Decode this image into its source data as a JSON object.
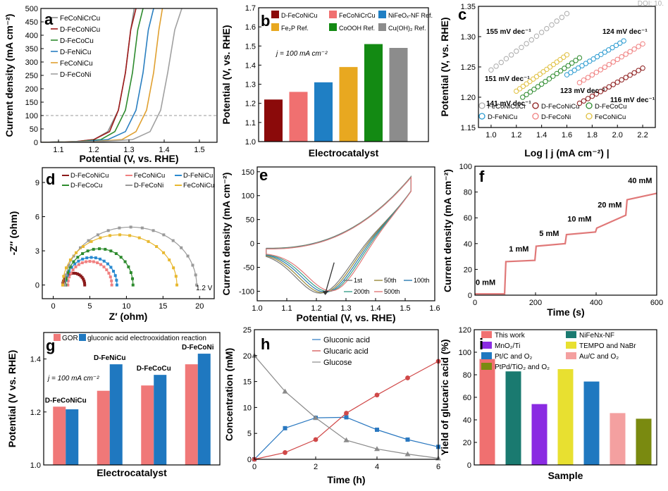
{
  "corner_text": "DOI: 10.",
  "chart_data": [
    {
      "panel": "a",
      "type": "line",
      "xlabel": "Potential (V, vs. RHE)",
      "ylabel": "Current density (mA cm⁻²)",
      "xlim": [
        1.05,
        1.55
      ],
      "ylim": [
        0,
        500
      ],
      "xticks": [
        "1.1",
        "1.2",
        "1.3",
        "1.4",
        "1.5"
      ],
      "yticks": [
        "0",
        "50",
        "100",
        "150",
        "200",
        "250",
        "300",
        "350",
        "400",
        "450",
        "500"
      ],
      "reference_line": 100,
      "series": [
        {
          "name": "FeCoNiCrCu",
          "color": "#8a8a8a",
          "x": [
            1.05,
            1.15,
            1.2,
            1.24,
            1.27,
            1.29,
            1.305,
            1.315
          ],
          "y": [
            0,
            3,
            10,
            40,
            120,
            260,
            420,
            500
          ]
        },
        {
          "name": "D-FeCoNiCu",
          "color": "#9e1b1b",
          "x": [
            1.05,
            1.15,
            1.2,
            1.245,
            1.27,
            1.29,
            1.305,
            1.32
          ],
          "y": [
            0,
            3,
            10,
            40,
            120,
            260,
            420,
            500
          ]
        },
        {
          "name": "D-FeCoCu",
          "color": "#2e8b2e",
          "x": [
            1.05,
            1.16,
            1.22,
            1.26,
            1.29,
            1.31,
            1.325,
            1.34
          ],
          "y": [
            0,
            3,
            10,
            40,
            120,
            260,
            420,
            500
          ]
        },
        {
          "name": "D-FeNiCu",
          "color": "#2a7fc1",
          "x": [
            1.05,
            1.17,
            1.24,
            1.29,
            1.32,
            1.34,
            1.355,
            1.37
          ],
          "y": [
            0,
            3,
            10,
            40,
            120,
            260,
            420,
            500
          ]
        },
        {
          "name": "FeCoNiCu",
          "color": "#e0a030",
          "x": [
            1.05,
            1.2,
            1.28,
            1.32,
            1.35,
            1.37,
            1.385,
            1.395
          ],
          "y": [
            0,
            3,
            10,
            40,
            120,
            260,
            420,
            500
          ]
        },
        {
          "name": "D-FeCoNi",
          "color": "#a0a0a0",
          "x": [
            1.05,
            1.22,
            1.31,
            1.36,
            1.39,
            1.41,
            1.43,
            1.45
          ],
          "y": [
            0,
            3,
            10,
            40,
            120,
            260,
            420,
            500
          ]
        }
      ]
    },
    {
      "panel": "b",
      "type": "bar",
      "xlabel": "Electrocatalyst",
      "ylabel": "Potential (V, vs. RHE)",
      "ylim": [
        1.0,
        1.7
      ],
      "yticks": [
        "1.0",
        "1.1",
        "1.2",
        "1.3",
        "1.4",
        "1.5",
        "1.6",
        "1.7"
      ],
      "annotation": "j = 100 mA cm⁻²",
      "categories": [
        "D-FeCoNiCu",
        "FeCoNiCrCu",
        "NiFeOₓ-NF Ref.",
        "Fe₂P Ref.",
        "CoOOH Ref.",
        "Cu(OH)₂ Ref."
      ],
      "values": [
        1.22,
        1.26,
        1.31,
        1.39,
        1.51,
        1.49
      ],
      "colors": [
        "#8b0a0a",
        "#f07070",
        "#1f7fc4",
        "#e8a820",
        "#138a13",
        "#8c8c8c"
      ]
    },
    {
      "panel": "c",
      "type": "scatter",
      "xlabel": "Log | j (mA cm⁻²) |",
      "ylabel": "Potential (V, vs. RHE)",
      "xlim": [
        0.9,
        2.3
      ],
      "ylim": [
        1.15,
        1.35
      ],
      "xticks": [
        "1.0",
        "1.2",
        "1.4",
        "1.6",
        "1.8",
        "2.0",
        "2.2"
      ],
      "yticks": [
        "1.15",
        "1.20",
        "1.25",
        "1.30",
        "1.35"
      ],
      "series": [
        {
          "name": "FeCoNiCuCr",
          "color": "#aaaaaa",
          "slope_label": "155 mV dec⁻¹",
          "x": [
            1.0,
            1.6
          ],
          "y": [
            1.245,
            1.338
          ]
        },
        {
          "name": "D-FeCoNiCu",
          "color": "#8b1a1a",
          "slope_label": "116 mV dec⁻¹",
          "x": [
            1.7,
            2.2
          ],
          "y": [
            1.19,
            1.248
          ]
        },
        {
          "name": "D-FeCoCu",
          "color": "#2e8b2e",
          "slope_label": "141 mV dec⁻¹",
          "x": [
            1.25,
            1.7
          ],
          "y": [
            1.2,
            1.265
          ]
        },
        {
          "name": "D-FeNiCu",
          "color": "#2a9ad0",
          "slope_label": "124 mV dec⁻¹",
          "x": [
            1.6,
            2.05
          ],
          "y": [
            1.237,
            1.293
          ]
        },
        {
          "name": "D-FeCoNi",
          "color": "#f08080",
          "slope_label": "123 mV dec⁻¹",
          "x": [
            1.7,
            2.2
          ],
          "y": [
            1.224,
            1.288
          ]
        },
        {
          "name": "FeCoNiCu",
          "color": "#e0c040",
          "slope_label": "151 mV dec⁻¹",
          "x": [
            1.2,
            1.6
          ],
          "y": [
            1.21,
            1.27
          ]
        }
      ]
    },
    {
      "panel": "d",
      "type": "scatter",
      "xlabel": "Z′ (ohm)",
      "ylabel": "-Z″ (ohm)",
      "xlim": [
        -1.5,
        22
      ],
      "ylim": [
        -1.2,
        10.3
      ],
      "xticks": [
        "0",
        "5",
        "10",
        "15",
        "20"
      ],
      "yticks": [
        "0",
        "3",
        "6",
        "9"
      ],
      "annotation": "1.2 V",
      "series": [
        {
          "name": "D-FeCoNiCu",
          "color": "#8b1a1a",
          "center": 2.8,
          "radius": 1.5
        },
        {
          "name": "FeCoNiCu",
          "color": "#f08080",
          "center": 5.0,
          "radius": 3.0
        },
        {
          "name": "D-FeNiCu",
          "color": "#2a8ad0",
          "center": 5.2,
          "radius": 3.5
        },
        {
          "name": "D-FeCoCu",
          "color": "#2e8b2e",
          "center": 6.3,
          "radius": 4.6
        },
        {
          "name": "D-FeCoNi",
          "color": "#9a9a9a",
          "center": 10.6,
          "radius": 9.0
        },
        {
          "name": "FeCoNiCu",
          "color": "#e8b830",
          "center": 9.1,
          "radius": 7.8
        }
      ]
    },
    {
      "panel": "e",
      "type": "line",
      "xlabel": "Potential (V, vs. RHE)",
      "ylabel": "Current density (mA cm⁻²)",
      "xlim": [
        1.0,
        1.6
      ],
      "ylim": [
        -120,
        160
      ],
      "xticks": [
        "1.0",
        "1.1",
        "1.2",
        "1.3",
        "1.4",
        "1.5",
        "1.6"
      ],
      "yticks": [
        "-100",
        "-50",
        "0",
        "50",
        "100",
        "150"
      ],
      "series": [
        {
          "name": "1st",
          "color": "#7a7a7a"
        },
        {
          "name": "50th",
          "color": "#9a8a3a"
        },
        {
          "name": "100th",
          "color": "#2a7ab0"
        },
        {
          "name": "200th",
          "color": "#3aa08a"
        },
        {
          "name": "500th",
          "color": "#e07878"
        }
      ]
    },
    {
      "panel": "f",
      "type": "line",
      "xlabel": "Time (s)",
      "ylabel": "Current density (mA cm⁻²)",
      "xlim": [
        0,
        600
      ],
      "ylim": [
        0,
        100
      ],
      "xticks": [
        "0",
        "200",
        "400",
        "600"
      ],
      "yticks": [
        "0",
        "20",
        "40",
        "60",
        "80",
        "100"
      ],
      "series": [
        {
          "name": "trace",
          "color": "#e07878",
          "x": [
            0,
            98,
            102,
            198,
            202,
            298,
            302,
            398,
            402,
            498,
            502,
            600
          ],
          "y": [
            1,
            1,
            26,
            27,
            38,
            40,
            47,
            49,
            52,
            62,
            74,
            79
          ]
        }
      ],
      "step_labels": [
        {
          "text": "0 mM",
          "x": 35,
          "y": 8
        },
        {
          "text": "1 mM",
          "x": 145,
          "y": 34
        },
        {
          "text": "5 mM",
          "x": 245,
          "y": 46
        },
        {
          "text": "10 mM",
          "x": 345,
          "y": 57
        },
        {
          "text": "20 mM",
          "x": 445,
          "y": 68
        },
        {
          "text": "40 mM",
          "x": 545,
          "y": 87
        }
      ]
    },
    {
      "panel": "g",
      "type": "bar",
      "xlabel": "Electrocatalyst",
      "ylabel": "Potential (V vs. RHE)",
      "ylim": [
        1.0,
        1.5
      ],
      "yticks": [
        "1.0",
        "1.2",
        "1.4"
      ],
      "annotation": "j = 100 mA cm⁻²",
      "categories": [
        "D-FeCoNiCu",
        "D-FeNiCu",
        "D-FeCoCu",
        "D-FeCoNi"
      ],
      "series": [
        {
          "name": "GOR",
          "color": "#f07878",
          "values": [
            1.22,
            1.28,
            1.3,
            1.38
          ]
        },
        {
          "name": "gluconic acid electrooxidation reaction",
          "color": "#1f78c0",
          "values": [
            1.21,
            1.38,
            1.34,
            1.42
          ]
        }
      ]
    },
    {
      "panel": "h",
      "type": "line",
      "xlabel": "Time (h)",
      "ylabel": "Concentration (mM)",
      "xlim": [
        0,
        6
      ],
      "ylim": [
        0,
        25
      ],
      "xticks": [
        "0",
        "2",
        "4",
        "6"
      ],
      "yticks": [
        "0",
        "5",
        "10",
        "15",
        "20",
        "25"
      ],
      "x": [
        0,
        1,
        2,
        3,
        4,
        5,
        6
      ],
      "series": [
        {
          "name": "Gluconic acid",
          "color": "#2a78c0",
          "marker": "square",
          "values": [
            0,
            6.0,
            8.0,
            8.1,
            5.7,
            3.8,
            2.4
          ]
        },
        {
          "name": "Glucaric acid",
          "color": "#d04848",
          "marker": "circle",
          "values": [
            0,
            1.3,
            3.8,
            8.9,
            12.4,
            15.7,
            18.9
          ]
        },
        {
          "name": "Glucose",
          "color": "#8a8a8a",
          "marker": "triangle",
          "values": [
            20,
            13.1,
            8.0,
            3.7,
            2.0,
            1.0,
            0.2
          ]
        }
      ]
    },
    {
      "panel": "i",
      "type": "bar",
      "xlabel": "Sample",
      "ylabel": "Yield of glucaric acid (%)",
      "ylim": [
        0,
        120
      ],
      "yticks": [
        "0",
        "20",
        "40",
        "60",
        "80",
        "100",
        "120"
      ],
      "categories": [
        "This work",
        "NiFeNx-NF",
        "MnO₂/Ti",
        "TEMPO and NaBr",
        "Pt/C and O₂",
        "Au/C and O₂",
        "PtPd/TiO₂ and O₂"
      ],
      "values": [
        94,
        83,
        54,
        85,
        74,
        46,
        41
      ],
      "colors": [
        "#f07070",
        "#1a7a70",
        "#8a2be2",
        "#e8e030",
        "#1f78c0",
        "#f4a0a0",
        "#7a8a10"
      ]
    }
  ]
}
